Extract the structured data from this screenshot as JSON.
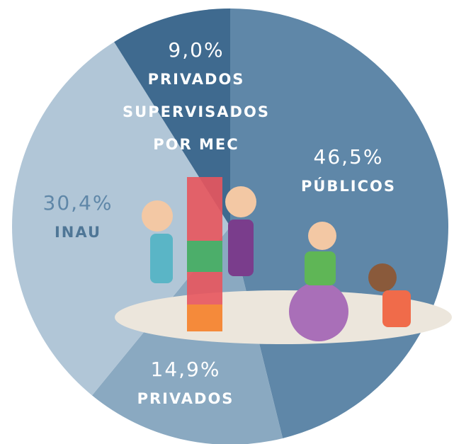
{
  "chart_data": {
    "type": "pie",
    "categories": [
      "PÚBLICOS",
      "PRIVADOS",
      "INAU",
      "PRIVADOS SUPERVISADOS POR MEC"
    ],
    "values": [
      46.5,
      14.9,
      30.4,
      9.0
    ],
    "value_labels": [
      "46,5%",
      "14,9%",
      "30,4%",
      "9,0%"
    ],
    "colors": [
      "#5f87a8",
      "#8aa9c1",
      "#b1c6d7",
      "#3f6a8f"
    ]
  }
}
